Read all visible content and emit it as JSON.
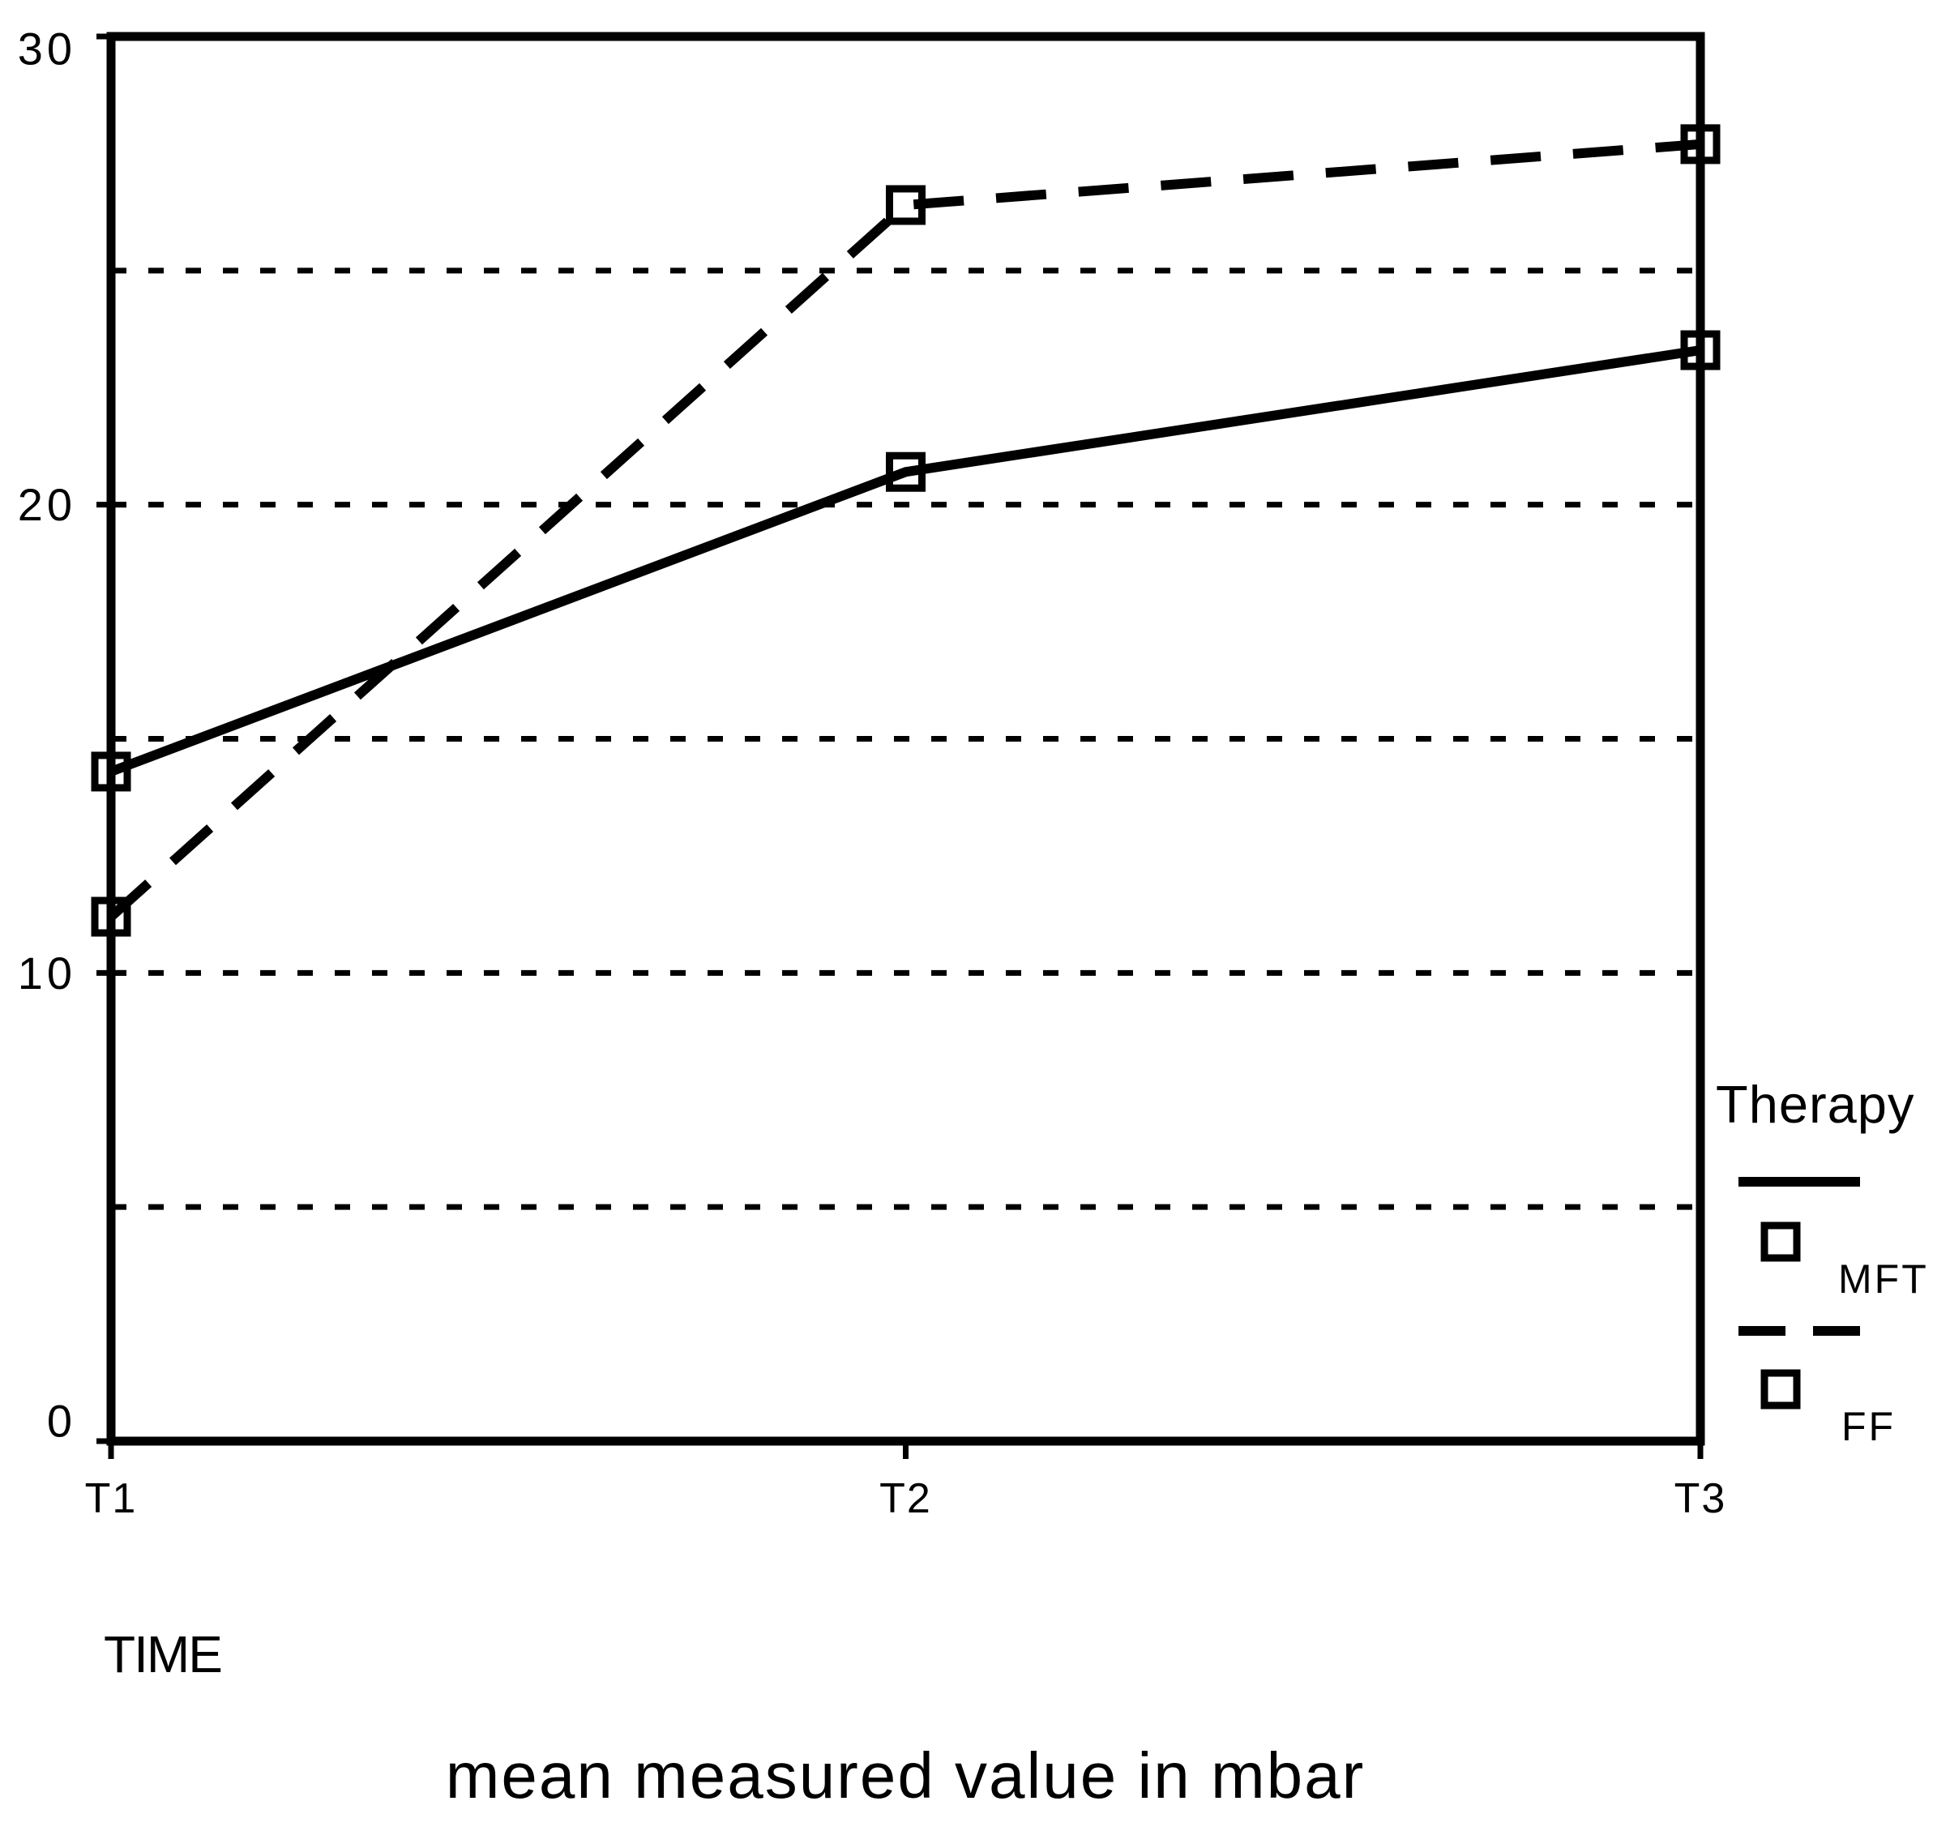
{
  "chart_data": {
    "type": "line",
    "title": "mean measured value in mbar",
    "xlabel": "TIME",
    "ylabel": "",
    "categories": [
      "T1",
      "T2",
      "T3"
    ],
    "series": [
      {
        "name": "MFT",
        "line_style": "solid",
        "marker": "hollow-square",
        "values": [
          14.3,
          20.7,
          23.3
        ]
      },
      {
        "name": "FF",
        "line_style": "dashed",
        "marker": "hollow-square",
        "values": [
          11.2,
          26.4,
          27.7
        ]
      }
    ],
    "ylim": [
      0,
      30
    ],
    "y_ticks": [
      0,
      10,
      20,
      30
    ],
    "gridline_values": [
      5,
      10,
      15,
      20,
      25
    ],
    "grid": "horizontal-dashed",
    "legend_position": "right"
  },
  "legend": {
    "title": "Therapy",
    "items": [
      {
        "label": "MFT",
        "line_style": "solid"
      },
      {
        "label": "FF",
        "line_style": "dashed"
      }
    ]
  },
  "colors": {
    "foreground": "#000000",
    "background": "#ffffff"
  }
}
